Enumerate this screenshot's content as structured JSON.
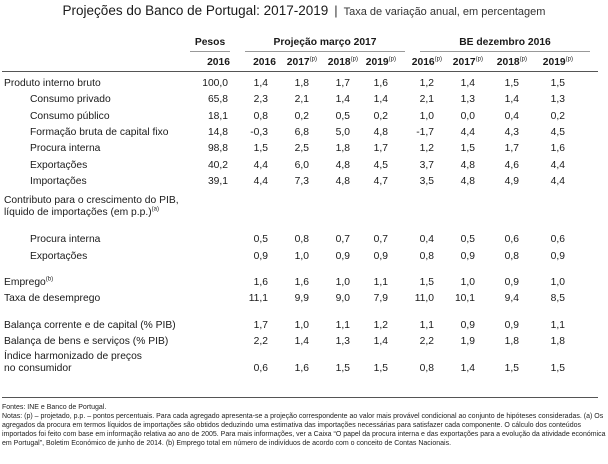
{
  "title": {
    "main": "Projeções do Banco de Portugal: 2017-2019",
    "separator": "|",
    "sub": "Taxa de variação anual, em percentagem"
  },
  "header": {
    "weights_label": "Pesos",
    "group1_label": "Projeção março 2017",
    "group2_label": "BE dezembro 2016",
    "weights_year": "2016",
    "years": [
      {
        "year": "2016",
        "sup": ""
      },
      {
        "year": "2017",
        "sup": "(p)"
      },
      {
        "year": "2018",
        "sup": "(p)"
      },
      {
        "year": "2019",
        "sup": "(p)"
      },
      {
        "year": "2016",
        "sup": "(p)"
      },
      {
        "year": "2017",
        "sup": "(p)"
      },
      {
        "year": "2018",
        "sup": "(p)"
      },
      {
        "year": "2019",
        "sup": "(p)"
      }
    ]
  },
  "rows": [
    {
      "label": "Produto interno bruto",
      "sup": "",
      "indent": 0,
      "weight": "100,0",
      "values": [
        "1,4",
        "1,8",
        "1,7",
        "1,6",
        "1,2",
        "1,4",
        "1,5",
        "1,5"
      ]
    },
    {
      "label": "Consumo privado",
      "sup": "",
      "indent": 1,
      "weight": "65,8",
      "values": [
        "2,3",
        "2,1",
        "1,4",
        "1,4",
        "2,1",
        "1,3",
        "1,4",
        "1,3"
      ]
    },
    {
      "label": "Consumo público",
      "sup": "",
      "indent": 1,
      "weight": "18,1",
      "values": [
        "0,8",
        "0,2",
        "0,5",
        "0,2",
        "1,0",
        "0,0",
        "0,4",
        "0,2"
      ]
    },
    {
      "label": "Formação bruta de capital fixo",
      "sup": "",
      "indent": 1,
      "weight": "14,8",
      "values": [
        "-0,3",
        "6,8",
        "5,0",
        "4,8",
        "-1,7",
        "4,4",
        "4,3",
        "4,5"
      ]
    },
    {
      "label": "Procura interna",
      "sup": "",
      "indent": 1,
      "weight": "98,8",
      "values": [
        "1,5",
        "2,5",
        "1,8",
        "1,7",
        "1,2",
        "1,5",
        "1,7",
        "1,6"
      ]
    },
    {
      "label": "Exportações",
      "sup": "",
      "indent": 1,
      "weight": "40,2",
      "values": [
        "4,4",
        "6,0",
        "4,8",
        "4,5",
        "3,7",
        "4,8",
        "4,6",
        "4,4"
      ]
    },
    {
      "label": "Importações",
      "sup": "",
      "indent": 1,
      "weight": "39,1",
      "values": [
        "4,4",
        "7,3",
        "4,8",
        "4,7",
        "3,5",
        "4,8",
        "4,9",
        "4,4"
      ]
    },
    {
      "label": "Contributo para o crescimento do PIB,",
      "label2": "líquido de importações (em p.p.)",
      "sup": "(a)",
      "indent": 0,
      "weight": "",
      "values": [
        "",
        "",
        "",
        "",
        "",
        "",
        "",
        ""
      ]
    },
    {
      "label": "Procura interna",
      "sup": "",
      "indent": 1,
      "weight": "",
      "values": [
        "0,5",
        "0,8",
        "0,7",
        "0,7",
        "0,4",
        "0,5",
        "0,6",
        "0,6"
      ]
    },
    {
      "label": "Exportações",
      "sup": "",
      "indent": 1,
      "weight": "",
      "values": [
        "0,9",
        "1,0",
        "0,9",
        "0,9",
        "0,8",
        "0,9",
        "0,8",
        "0,9"
      ]
    },
    {
      "label": "Emprego",
      "sup": "(b)",
      "indent": 0,
      "weight": "",
      "values": [
        "1,6",
        "1,6",
        "1,0",
        "1,1",
        "1,5",
        "1,0",
        "0,9",
        "1,0"
      ]
    },
    {
      "label": "Taxa de desemprego",
      "sup": "",
      "indent": 0,
      "weight": "",
      "values": [
        "11,1",
        "9,9",
        "9,0",
        "7,9",
        "11,0",
        "10,1",
        "9,4",
        "8,5"
      ]
    },
    {
      "label": "Balança corrente e de capital (% PIB)",
      "sup": "",
      "indent": 0,
      "weight": "",
      "values": [
        "1,7",
        "1,0",
        "1,1",
        "1,2",
        "1,1",
        "0,9",
        "0,9",
        "1,1"
      ]
    },
    {
      "label": "Balança de bens e serviços (% PIB)",
      "sup": "",
      "indent": 0,
      "weight": "",
      "values": [
        "2,2",
        "1,4",
        "1,3",
        "1,4",
        "2,2",
        "1,9",
        "1,8",
        "1,8"
      ]
    },
    {
      "label": "Índice harmonizado de preços",
      "label2": "no consumidor",
      "sup": "",
      "indent": 0,
      "weight": "",
      "values": [
        "0,6",
        "1,6",
        "1,5",
        "1,5",
        "0,8",
        "1,4",
        "1,5",
        "1,5"
      ]
    }
  ],
  "notes": {
    "sources": "Fontes: INE e Banco de Portugal.",
    "text": "Notas: (p) – projetado, p.p. – pontos percentuais. Para cada agregado apresenta-se a projeção correspondente ao valor mais provável condicional ao conjunto de hipóteses consideradas. (a) Os agregados da procura em termos líquidos de importações são obtidos deduzindo uma estimativa das importações necessárias para satisfazer cada componente. O cálculo dos conteúdos importados foi feito com base em informação relativa ao ano de 2005. Para mais informações, ver a Caixa “O papel da procura interna e das exportações para a evolução da atividade económica em Portugal”, Boletim Económico de junho de 2014. (b) Emprego total em número de indivíduos de acordo com o conceito de Contas Nacionais."
  }
}
